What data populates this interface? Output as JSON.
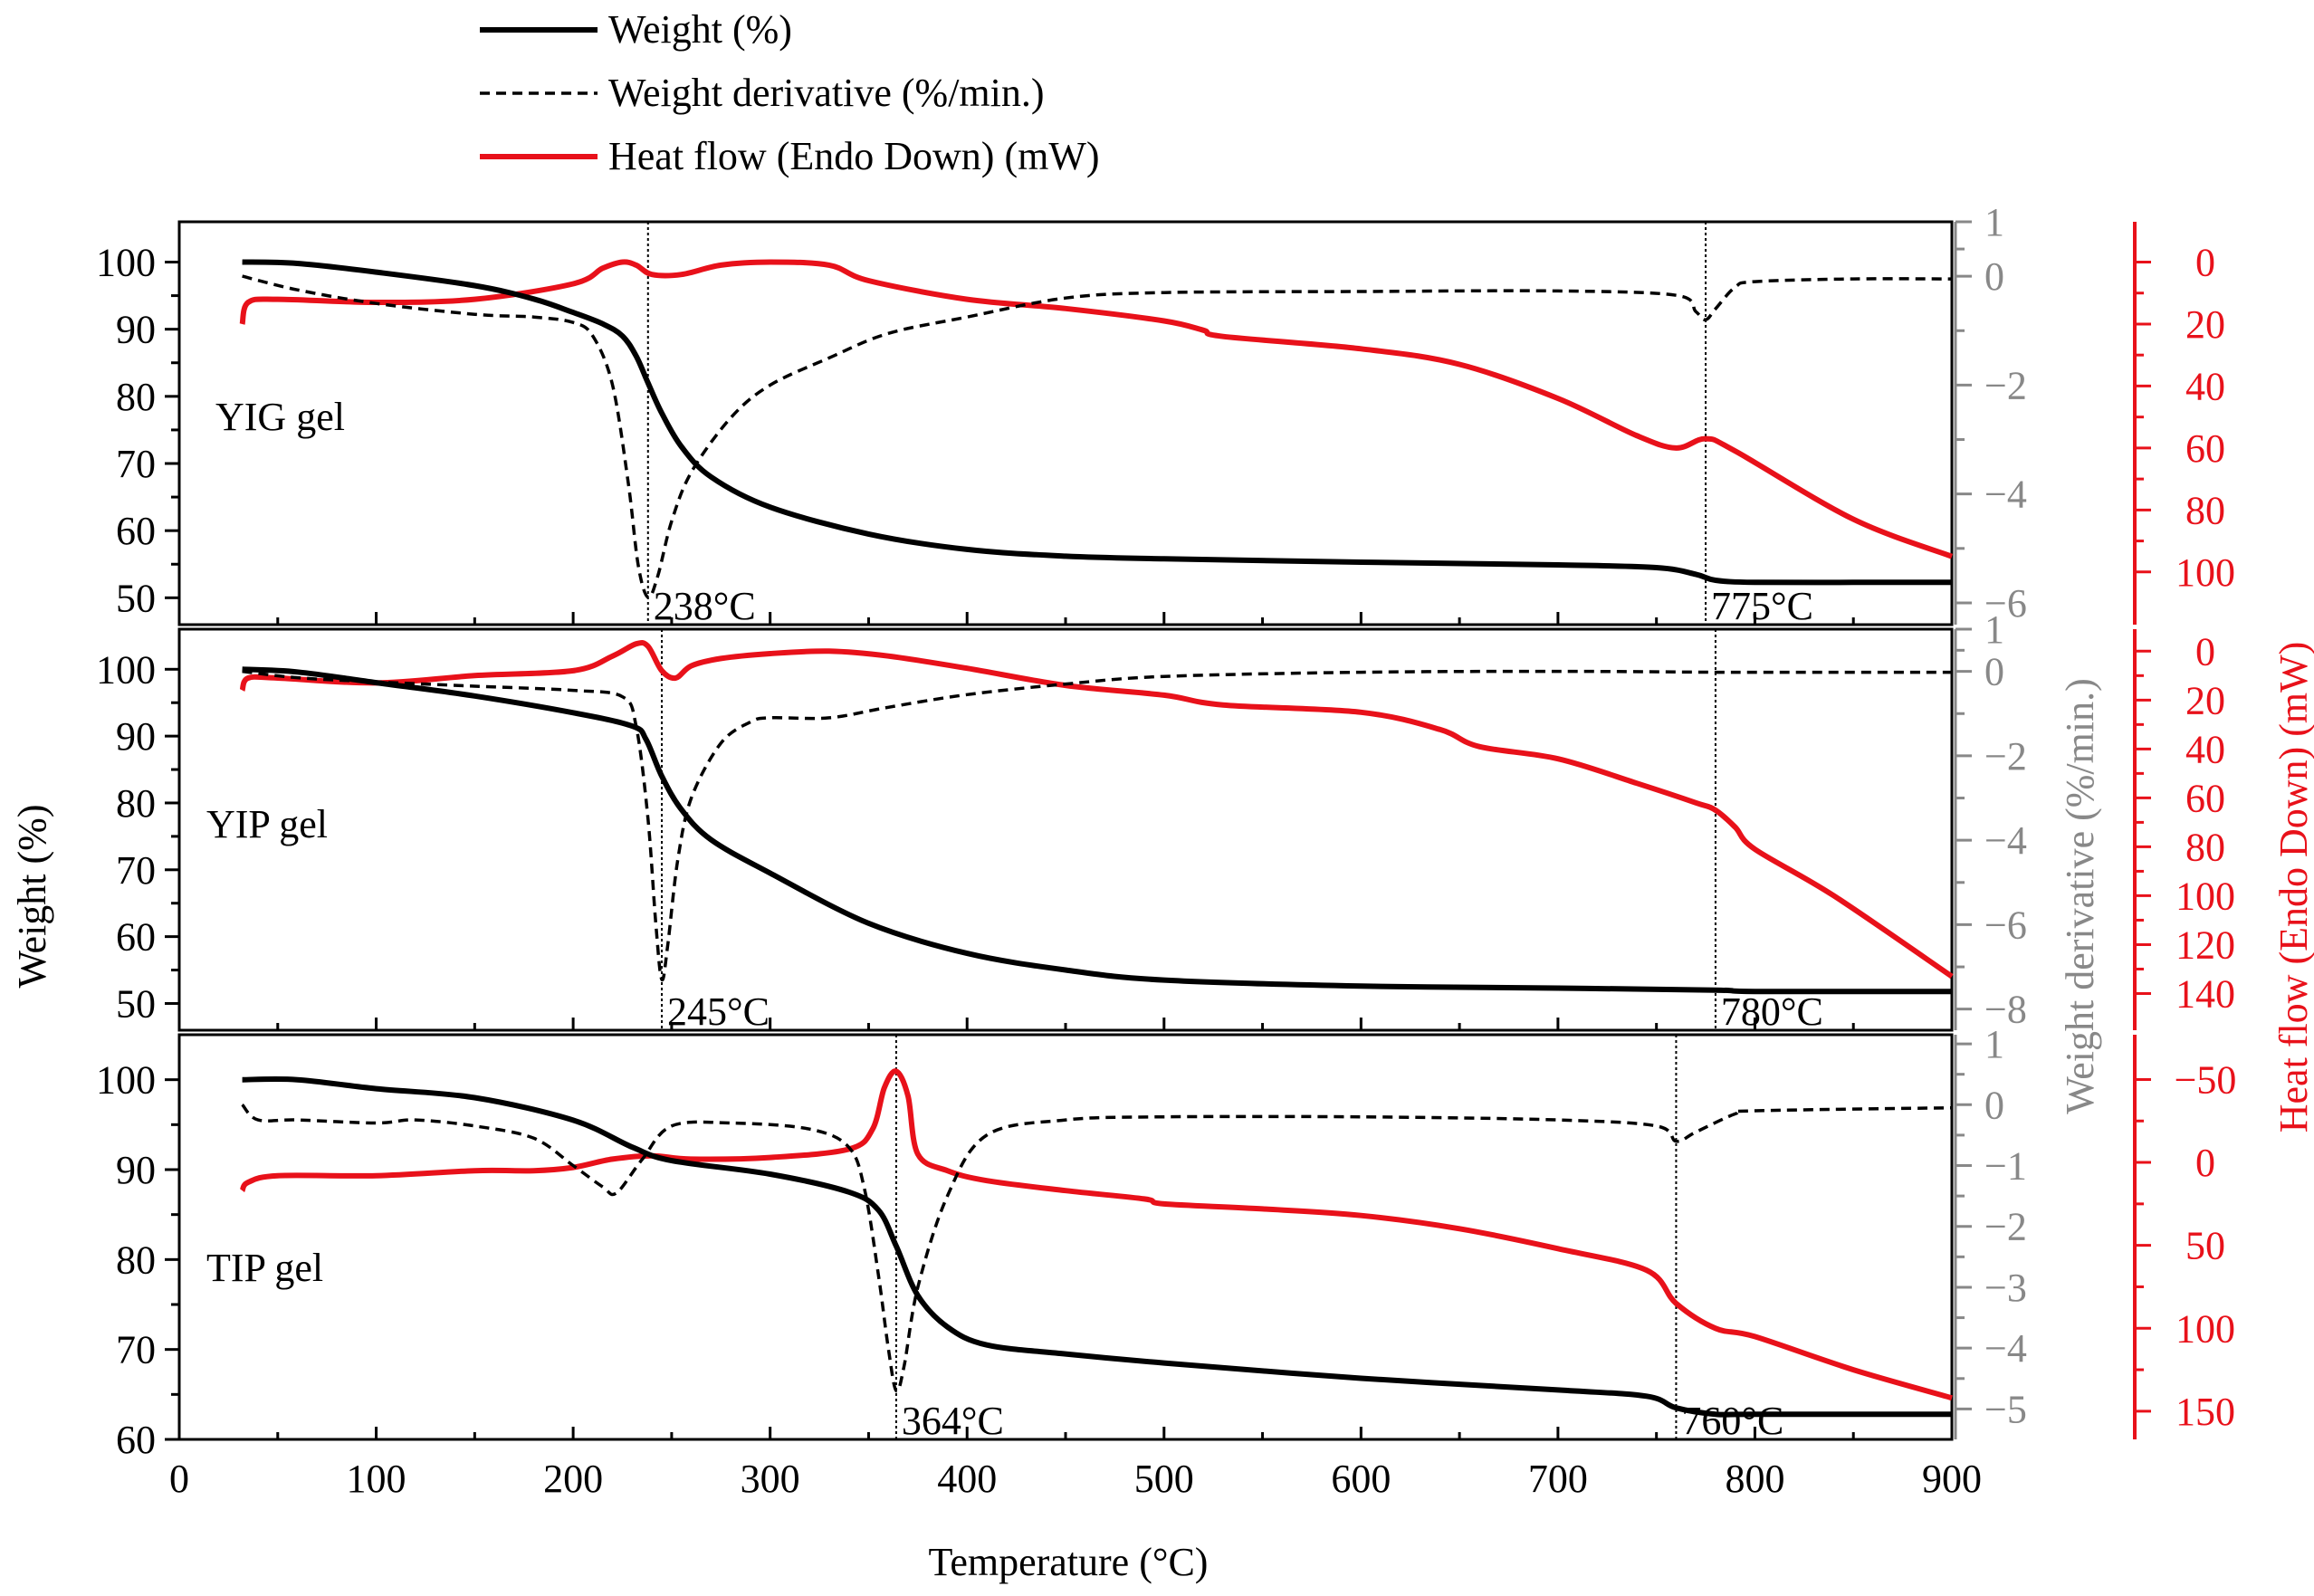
{
  "colors": {
    "weight": "#000000",
    "derivative": "#000000",
    "heat": "#e8111a",
    "deriv_axis": "#888888"
  },
  "legend": {
    "weight": "Weight (%)",
    "derivative": "Weight derivative (%/min.)",
    "heat": "Heat flow (Endo Down) (mW)"
  },
  "chart_data": [
    {
      "type": "line",
      "panel": "top",
      "sample_label": "YIG gel",
      "xlim": [
        0,
        900
      ],
      "weight_ylim": [
        46,
        106
      ],
      "weight_ticks": [
        50,
        60,
        70,
        80,
        90,
        100
      ],
      "derivative_ylim": [
        -6.4,
        1
      ],
      "derivative_ticks": [
        -6,
        -4,
        -2,
        0,
        1
      ],
      "heat_ylim": [
        117,
        -13
      ],
      "heat_ticks": [
        0,
        20,
        40,
        60,
        80,
        100
      ],
      "weight": {
        "x": [
          32,
          60,
          100,
          150,
          180,
          200,
          215,
          225,
          232,
          238,
          245,
          255,
          270,
          300,
          350,
          400,
          450,
          500,
          600,
          700,
          750,
          770,
          780,
          800,
          850,
          900
        ],
        "y": [
          100,
          99.8,
          98.5,
          96.5,
          94.5,
          92.5,
          90.8,
          89,
          86,
          82,
          77.5,
          72.5,
          68,
          63.5,
          59.5,
          57.2,
          56.2,
          55.8,
          55.3,
          54.9,
          54.5,
          53.5,
          52.6,
          52.3,
          52.3,
          52.3
        ]
      },
      "derivative": {
        "x": [
          32,
          60,
          100,
          150,
          180,
          200,
          210,
          220,
          228,
          233,
          238,
          243,
          250,
          260,
          280,
          300,
          330,
          360,
          400,
          450,
          500,
          600,
          700,
          760,
          770,
          775,
          780,
          790,
          800,
          850,
          900
        ],
        "y": [
          0,
          -0.25,
          -0.5,
          -0.7,
          -0.75,
          -0.85,
          -1.1,
          -2,
          -3.8,
          -5.3,
          -5.9,
          -5.5,
          -4.5,
          -3.6,
          -2.6,
          -2,
          -1.5,
          -1.05,
          -0.75,
          -0.4,
          -0.3,
          -0.28,
          -0.27,
          -0.35,
          -0.65,
          -0.8,
          -0.6,
          -0.2,
          -0.1,
          -0.05,
          -0.05
        ]
      },
      "heat": {
        "x": [
          32,
          35,
          50,
          100,
          150,
          200,
          215,
          225,
          232,
          240,
          255,
          275,
          300,
          330,
          350,
          400,
          450,
          500,
          520,
          530,
          600,
          650,
          700,
          740,
          760,
          775,
          790,
          850,
          900
        ],
        "y": [
          20,
          13,
          12,
          13,
          12,
          7,
          2,
          0,
          1,
          4,
          4,
          1,
          0,
          1,
          6,
          12,
          15,
          19,
          22,
          24,
          28,
          33,
          44,
          56,
          60,
          57,
          61,
          83,
          95
        ]
      },
      "annotations": [
        {
          "x": 238,
          "text": "238°C"
        },
        {
          "x": 775,
          "text": "775°C"
        }
      ]
    },
    {
      "type": "line",
      "panel": "middle",
      "sample_label": "YIP gel",
      "xlim": [
        0,
        900
      ],
      "weight_ylim": [
        46,
        106
      ],
      "weight_ticks": [
        50,
        60,
        70,
        80,
        90,
        100
      ],
      "derivative_ylim": [
        -8.5,
        1
      ],
      "derivative_ticks": [
        -8,
        -6,
        -4,
        -2,
        0,
        1
      ],
      "heat_ylim": [
        155,
        -9
      ],
      "heat_ticks": [
        0,
        20,
        40,
        60,
        80,
        100,
        120,
        140
      ],
      "weight": {
        "x": [
          32,
          60,
          100,
          150,
          200,
          230,
          237,
          245,
          255,
          270,
          300,
          350,
          400,
          450,
          500,
          600,
          700,
          780,
          800,
          900
        ],
        "y": [
          100,
          99.6,
          98,
          96,
          93.5,
          91.5,
          89.5,
          84,
          79,
          74.5,
          69.5,
          62,
          57.5,
          55,
          53.5,
          52.6,
          52.3,
          52,
          51.8,
          51.8
        ]
      },
      "derivative": {
        "x": [
          32,
          60,
          100,
          150,
          200,
          225,
          232,
          238,
          242,
          245,
          248,
          253,
          260,
          275,
          290,
          300,
          330,
          360,
          400,
          450,
          500,
          600,
          700,
          780,
          800,
          900
        ],
        "y": [
          0,
          -0.15,
          -0.25,
          -0.35,
          -0.45,
          -0.6,
          -1.3,
          -3.5,
          -6,
          -7.3,
          -6.5,
          -4.5,
          -3,
          -1.7,
          -1.2,
          -1.1,
          -1.1,
          -0.85,
          -0.55,
          -0.3,
          -0.12,
          -0.02,
          0,
          -0.02,
          -0.02,
          -0.02
        ]
      },
      "heat": {
        "x": [
          32,
          35,
          50,
          100,
          150,
          200,
          220,
          232,
          238,
          245,
          252,
          260,
          275,
          300,
          330,
          360,
          400,
          450,
          500,
          530,
          600,
          640,
          660,
          700,
          740,
          770,
          780,
          790,
          800,
          840,
          900
        ],
        "y": [
          16,
          11,
          11,
          13,
          10,
          8,
          2,
          -3,
          -2,
          8,
          11,
          6,
          3,
          1,
          0,
          2,
          7,
          14,
          18,
          22,
          25,
          32,
          39,
          44,
          54,
          62,
          65,
          72,
          81,
          100,
          133
        ]
      },
      "annotations": [
        {
          "x": 245,
          "text": "245°C"
        },
        {
          "x": 780,
          "text": "780°C"
        }
      ]
    },
    {
      "type": "line",
      "panel": "bottom",
      "sample_label": "TIP gel",
      "xlim": [
        0,
        900
      ],
      "weight_ylim": [
        60,
        105
      ],
      "weight_ticks": [
        60,
        70,
        80,
        90,
        100
      ],
      "derivative_ylim": [
        -5.5,
        1.15
      ],
      "derivative_ticks": [
        -5,
        -4,
        -3,
        -2,
        -1,
        0,
        1
      ],
      "heat_ylim": [
        167,
        -77
      ],
      "heat_ticks": [
        -50,
        0,
        50,
        100,
        150
      ],
      "weight": {
        "x": [
          32,
          60,
          100,
          150,
          200,
          230,
          250,
          300,
          340,
          355,
          364,
          375,
          390,
          410,
          450,
          500,
          600,
          700,
          745,
          760,
          780,
          800,
          900
        ],
        "y": [
          100,
          100,
          99,
          98,
          95.5,
          92.5,
          91,
          89.5,
          87.5,
          85.5,
          81.5,
          76,
          72.5,
          70.5,
          69.5,
          68.5,
          66.8,
          65.5,
          64.8,
          63.5,
          62.8,
          62.8,
          62.8
        ]
      },
      "derivative": {
        "x": [
          32,
          40,
          60,
          100,
          120,
          150,
          180,
          200,
          215,
          222,
          235,
          250,
          280,
          320,
          340,
          348,
          355,
          360,
          364,
          368,
          375,
          390,
          410,
          450,
          500,
          600,
          700,
          750,
          760,
          770,
          790,
          800,
          900
        ],
        "y": [
          0,
          -0.25,
          -0.25,
          -0.3,
          -0.25,
          -0.35,
          -0.55,
          -1,
          -1.35,
          -1.45,
          -0.9,
          -0.35,
          -0.3,
          -0.4,
          -0.7,
          -1.4,
          -2.8,
          -4,
          -4.7,
          -4.3,
          -3,
          -1.5,
          -0.5,
          -0.25,
          -0.2,
          -0.2,
          -0.25,
          -0.35,
          -0.6,
          -0.45,
          -0.15,
          -0.1,
          -0.05
        ]
      },
      "heat": {
        "x": [
          32,
          35,
          50,
          100,
          150,
          180,
          200,
          220,
          240,
          260,
          300,
          340,
          352,
          358,
          364,
          370,
          375,
          390,
          410,
          450,
          490,
          500,
          550,
          600,
          650,
          700,
          745,
          760,
          780,
          800,
          850,
          900
        ],
        "y": [
          17,
          12,
          8,
          8,
          5,
          5,
          3,
          -2,
          -4,
          -2,
          -3,
          -8,
          -20,
          -45,
          -55,
          -40,
          -5,
          5,
          11,
          17,
          22,
          25,
          28,
          32,
          40,
          52,
          65,
          85,
          100,
          105,
          125,
          142
        ]
      },
      "annotations": [
        {
          "x": 364,
          "text": "364°C"
        },
        {
          "x": 760,
          "text": "760°C"
        }
      ]
    }
  ],
  "axes": {
    "x_label": "Temperature (°C)",
    "x_ticks": [
      0,
      100,
      200,
      300,
      400,
      500,
      600,
      700,
      800,
      900
    ],
    "left_label": "Weight (%)",
    "mid_right_label": "Weight derivative (%/min.)",
    "far_right_label": "Heat flow (Endo Down) (mW)"
  }
}
